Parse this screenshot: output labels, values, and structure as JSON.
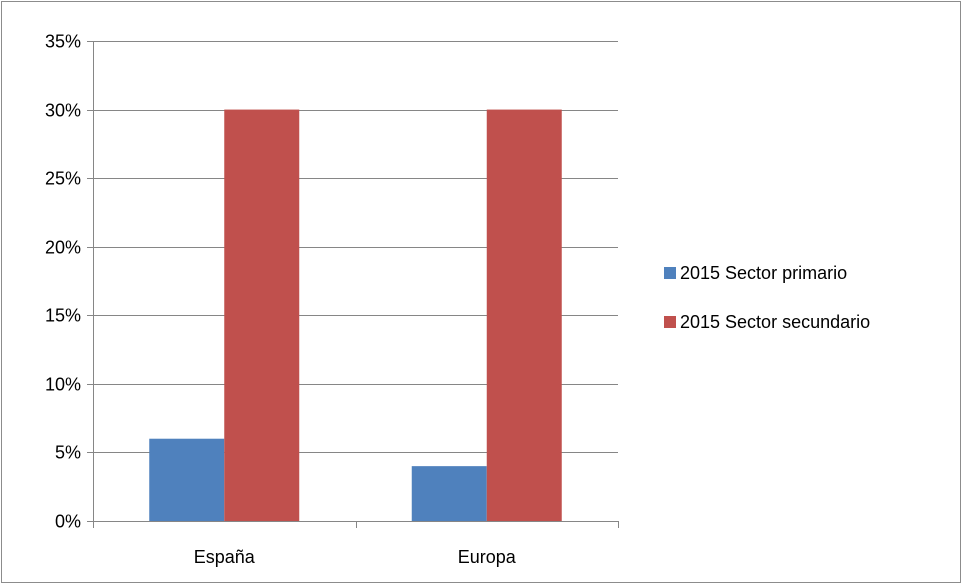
{
  "chart_data": {
    "type": "bar",
    "categories": [
      "España",
      "Europa"
    ],
    "series": [
      {
        "name": "2015 Sector primario",
        "values": [
          6,
          4
        ],
        "color": "#4f81bd"
      },
      {
        "name": "2015 Sector secundario",
        "values": [
          30,
          30
        ],
        "color": "#c0504d"
      }
    ],
    "ylim": [
      0,
      35
    ],
    "yticks": [
      0,
      5,
      10,
      15,
      20,
      25,
      30,
      35
    ],
    "ytick_labels": [
      "0%",
      "5%",
      "10%",
      "15%",
      "20%",
      "25%",
      "30%",
      "35%"
    ],
    "grid": true,
    "legend_position": "right",
    "title": "",
    "xlabel": "",
    "ylabel": ""
  }
}
